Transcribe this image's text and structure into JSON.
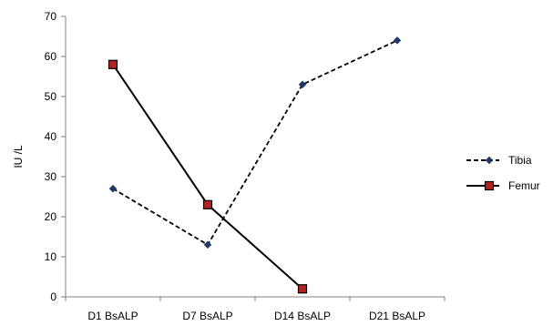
{
  "chart_data": {
    "type": "line",
    "categories": [
      "D1 BsALP",
      "D7 BsALP",
      "D14 BsALP",
      "D21 BsALP"
    ],
    "ylabel": "IU /L",
    "ylim": [
      0,
      70
    ],
    "yticks": [
      0,
      10,
      20,
      30,
      40,
      50,
      60,
      70
    ],
    "grid": false,
    "legend_position": "right",
    "series": [
      {
        "name": "Tibia",
        "values": [
          27,
          13,
          53,
          64
        ],
        "line_style": "dashed",
        "marker": "diamond",
        "color": "#000000",
        "marker_fill": "#1f3864"
      },
      {
        "name": "Femur",
        "values": [
          58,
          23,
          2,
          null
        ],
        "line_style": "solid",
        "marker": "square",
        "color": "#000000",
        "marker_fill": "#b22222"
      }
    ]
  }
}
